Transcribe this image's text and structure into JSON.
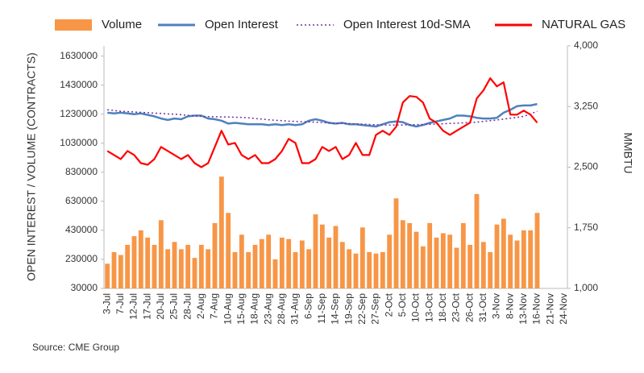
{
  "chart_data": {
    "type": "bar",
    "categories": [
      "3-Jul",
      null,
      "7-Jul",
      null,
      "12-Jul",
      null,
      "17-Jul",
      null,
      "20-Jul",
      null,
      "25-Jul",
      null,
      "28-Jul",
      null,
      "2-Aug",
      null,
      "7-Aug",
      null,
      "10-Aug",
      null,
      "15-Aug",
      null,
      "18-Aug",
      null,
      "23-Aug",
      null,
      "28-Aug",
      null,
      "31-Aug",
      null,
      "6-Sep",
      null,
      "11-Sep",
      null,
      "14-Sep",
      null,
      "19-Sep",
      null,
      "22-Sep",
      null,
      "27-Sep",
      null,
      "2-Oct",
      null,
      "5-Oct",
      null,
      "10-Oct",
      null,
      "13-Oct",
      null,
      "18-Oct",
      null,
      "23-Oct",
      null,
      "26-Oct",
      null,
      "31-Oct",
      null,
      "3-Nov",
      null,
      "8-Nov",
      null,
      "13-Nov",
      null,
      "16-Nov",
      null,
      "21-Nov",
      null,
      "24-Nov"
    ],
    "series": [
      {
        "name": "Volume",
        "type": "bar",
        "color": "#f79646",
        "values": [
          200000,
          280000,
          260000,
          330000,
          390000,
          430000,
          380000,
          330000,
          500000,
          300000,
          350000,
          300000,
          330000,
          240000,
          330000,
          300000,
          480000,
          800000,
          550000,
          280000,
          400000,
          280000,
          330000,
          370000,
          400000,
          230000,
          380000,
          370000,
          280000,
          360000,
          300000,
          540000,
          470000,
          380000,
          460000,
          350000,
          300000,
          270000,
          450000,
          280000,
          270000,
          280000,
          400000,
          650000,
          500000,
          480000,
          420000,
          320000,
          480000,
          380000,
          410000,
          400000,
          310000,
          480000,
          330000,
          680000,
          350000,
          280000,
          470000,
          510000,
          400000,
          360000,
          430000,
          430000,
          550000,
          null,
          null,
          null,
          null
        ]
      },
      {
        "name": "Open Interest",
        "type": "line",
        "color": "#4f81bd",
        "values": [
          1240000,
          1235000,
          1240000,
          1235000,
          1230000,
          1235000,
          1225000,
          1215000,
          1200000,
          1190000,
          1200000,
          1195000,
          1215000,
          1220000,
          1220000,
          1200000,
          1195000,
          1185000,
          1165000,
          1170000,
          1165000,
          1160000,
          1160000,
          1160000,
          1155000,
          1160000,
          1155000,
          1160000,
          1155000,
          1160000,
          1185000,
          1195000,
          1185000,
          1170000,
          1165000,
          1170000,
          1160000,
          1160000,
          1155000,
          1150000,
          1145000,
          1160000,
          1175000,
          1180000,
          1175000,
          1155000,
          1145000,
          1155000,
          1170000,
          1180000,
          1190000,
          1200000,
          1220000,
          1220000,
          1215000,
          1205000,
          1200000,
          1200000,
          1205000,
          1240000,
          1260000,
          1285000,
          1290000,
          1290000,
          1300000,
          null,
          null,
          null,
          null
        ]
      },
      {
        "name": "Open Interest 10d-SMA",
        "type": "line",
        "style": "dotted",
        "color": "#7030a0",
        "values": [
          1260000,
          1255000,
          1250000,
          1248000,
          1245000,
          1242000,
          1240000,
          1237000,
          1235000,
          1232000,
          1230000,
          1226000,
          1222000,
          1218000,
          1215000,
          1213000,
          1212000,
          1211000,
          1210000,
          1209000,
          1208000,
          1205000,
          1200000,
          1196000,
          1192000,
          1188000,
          1185000,
          1182000,
          1180000,
          1178000,
          1177000,
          1175000,
          1172000,
          1170000,
          1168000,
          1166000,
          1165000,
          1163000,
          1161000,
          1159000,
          1157000,
          1156000,
          1155000,
          1155000,
          1156000,
          1157000,
          1158000,
          1159000,
          1160000,
          1162000,
          1164000,
          1166000,
          1168000,
          1170000,
          1172000,
          1175000,
          1180000,
          1185000,
          1190000,
          1196000,
          1202000,
          1208000,
          1215000,
          1232000,
          1250000,
          null,
          null,
          null,
          null
        ]
      },
      {
        "name": "NATURAL GAS",
        "type": "line",
        "axis": "y2",
        "color": "#ff0000",
        "values": [
          2700,
          2650,
          2600,
          2700,
          2650,
          2550,
          2530,
          2600,
          2750,
          2700,
          2650,
          2600,
          2650,
          2550,
          2500,
          2550,
          2750,
          2950,
          2780,
          2800,
          2650,
          2600,
          2650,
          2550,
          2550,
          2600,
          2700,
          2850,
          2800,
          2550,
          2550,
          2600,
          2750,
          2700,
          2750,
          2600,
          2650,
          2800,
          2650,
          2650,
          2900,
          2950,
          2900,
          3000,
          3300,
          3380,
          3370,
          3300,
          3100,
          3050,
          2950,
          2900,
          2950,
          3000,
          3050,
          3350,
          3450,
          3600,
          3500,
          3550,
          3150,
          3150,
          3200,
          3150,
          3050,
          null,
          null,
          null,
          null
        ]
      }
    ],
    "y_label": "OPEN INTEREST / VOLUME (CONTRACTS)",
    "y2_label": "MMBTU",
    "ylim": [
      30000,
      1700000
    ],
    "yticks": [
      30000,
      230000,
      430000,
      630000,
      830000,
      1030000,
      1230000,
      1430000,
      1630000
    ],
    "y2lim": [
      1000,
      4000
    ],
    "y2ticks": [
      {
        "value": 1000,
        "label": "1,000"
      },
      {
        "value": 1750,
        "label": "1,750"
      },
      {
        "value": 2500,
        "label": "2,500"
      },
      {
        "value": 3250,
        "label": "3,250"
      },
      {
        "value": 4000,
        "label": "4,000"
      }
    ],
    "legend": "top",
    "source": "Source: CME Group"
  }
}
